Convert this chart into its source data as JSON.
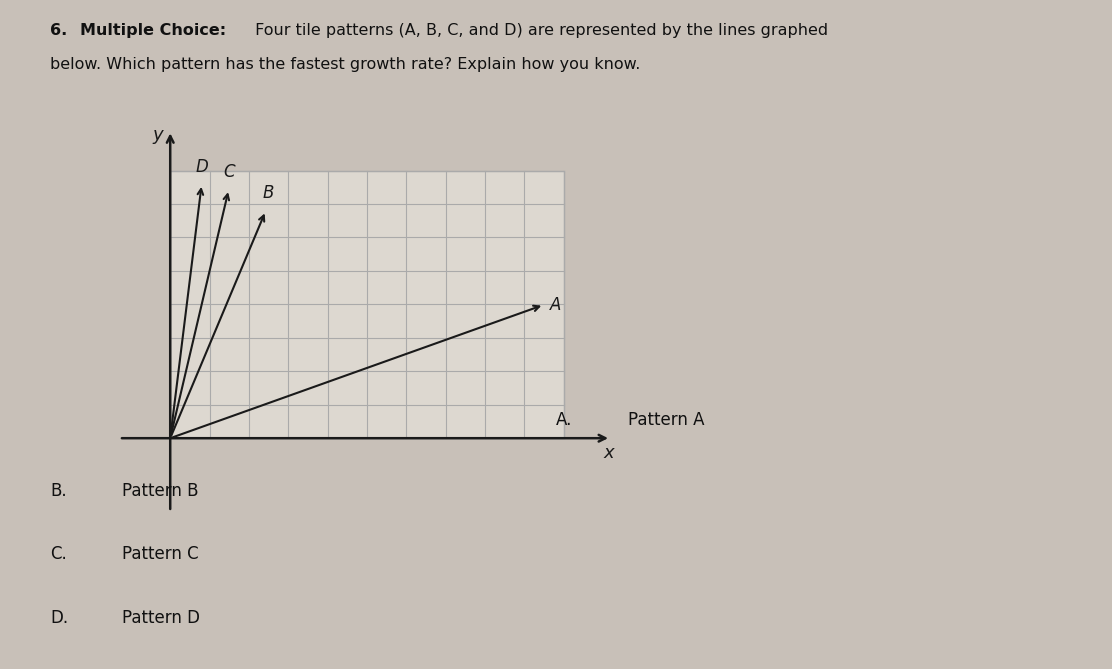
{
  "lines": {
    "A": {
      "slope": 0.42,
      "color": "#2a2a2a"
    },
    "B": {
      "slope": 2.8,
      "color": "#2a2a2a"
    },
    "C": {
      "slope": 5.0,
      "color": "#2a2a2a"
    },
    "D": {
      "slope": 9.5,
      "color": "#2a2a2a"
    }
  },
  "grid_color": "#aaaaaa",
  "axis_color": "#1a1a1a",
  "background_color": "#c8c0b8",
  "graph_bg": "#e0d8d0",
  "grid_nx": 10,
  "grid_ny": 8,
  "font_family": "DejaVu Sans",
  "title_line1_bold": "6.  Multiple Choice: ",
  "title_line1_normal": "Four tile patterns (A, B, C, and D) are represented by the lines graphed",
  "title_line2": "below. Which pattern has the fastest growth rate? Explain how you know.",
  "choices": [
    {
      "letter": "A.",
      "text": "Pattern A",
      "col": "right"
    },
    {
      "letter": "B.",
      "text": "Pattern B",
      "col": "left"
    },
    {
      "letter": "C.",
      "text": "Pattern C",
      "col": "left"
    },
    {
      "letter": "D.",
      "text": "Pattern D",
      "col": "left"
    }
  ]
}
